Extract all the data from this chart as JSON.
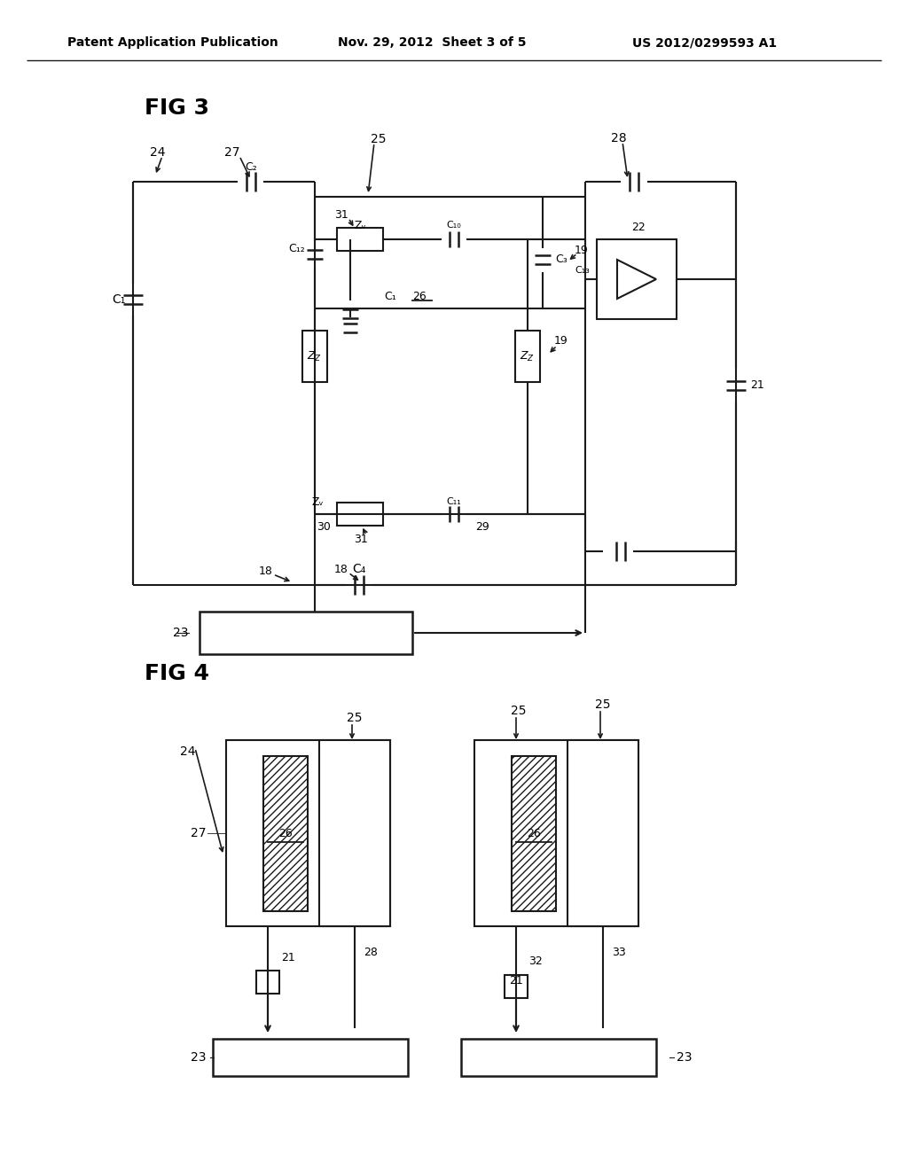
{
  "bg_color": "#ffffff",
  "header_left": "Patent Application Publication",
  "header_mid": "Nov. 29, 2012  Sheet 3 of 5",
  "header_right": "US 2012/0299593 A1",
  "fig3_label": "FIG 3",
  "fig4_label": "FIG 4",
  "lc": "#1a1a1a"
}
